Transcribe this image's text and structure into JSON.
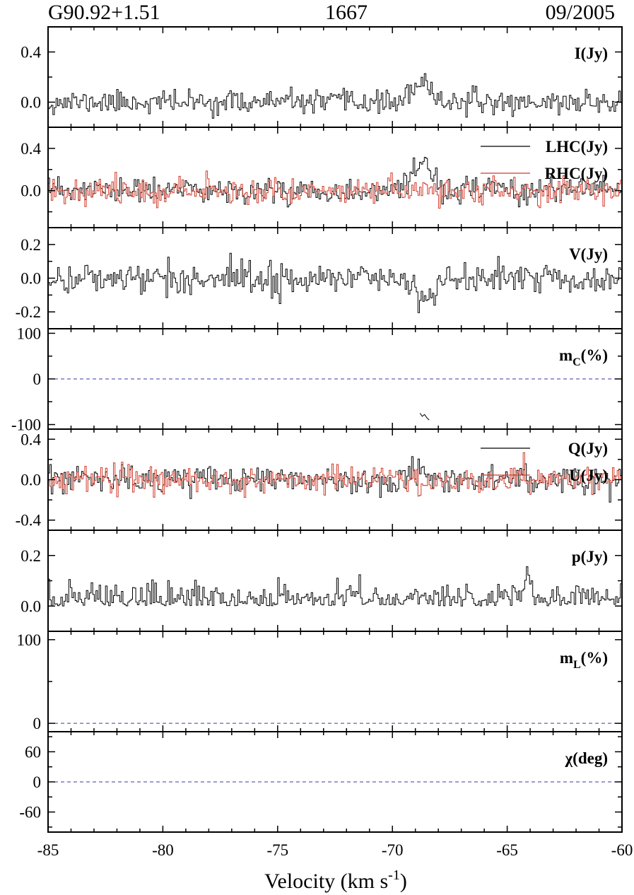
{
  "header": {
    "source": "G90.92+1.51",
    "frequency": "1667",
    "date": "09/2005"
  },
  "colors": {
    "series_black": "#000000",
    "series_red": "#d03a2a",
    "zero_line": "#3a3aa8"
  },
  "chart_data": {
    "type": "line",
    "xlabel": "Velocity (km s",
    "xlabel_sup": "-1",
    "xlabel_close": ")",
    "xlim": [
      -85,
      -60
    ],
    "xticks": [
      -85,
      -80,
      -75,
      -70,
      -65,
      -60
    ],
    "xtick_labels": [
      "-85",
      "-80",
      "-75",
      "-70",
      "-65",
      "-60"
    ],
    "panels": [
      {
        "id": "I",
        "label": "I(Jy)",
        "ylim": [
          -0.2,
          0.6
        ],
        "yticks": [
          0.0,
          0.4
        ],
        "ytick_labels": [
          "0.0",
          "0.4"
        ],
        "zero_dashed": false,
        "series": [
          {
            "key": "I",
            "color": "#000000",
            "noise": 0.045,
            "seed": 11,
            "features": [
              {
                "center": -68.7,
                "width": 0.45,
                "amp": 0.13
              }
            ]
          }
        ]
      },
      {
        "id": "LR",
        "label": "",
        "ylim": [
          -0.35,
          0.6
        ],
        "yticks": [
          0.0,
          0.4
        ],
        "ytick_labels": [
          "0.0",
          "0.4"
        ],
        "zero_dashed": false,
        "legend": [
          {
            "name": "LHC(Jy)",
            "color": "#000000"
          },
          {
            "name": "RHC(Jy)",
            "color": "#d03a2a"
          }
        ],
        "series": [
          {
            "key": "LHC",
            "color": "#000000",
            "noise": 0.06,
            "seed": 23,
            "features": [
              {
                "center": -68.6,
                "width": 0.35,
                "amp": 0.27
              }
            ]
          },
          {
            "key": "RHC",
            "color": "#d03a2a",
            "noise": 0.06,
            "seed": 37,
            "features": []
          }
        ]
      },
      {
        "id": "V",
        "label": "V(Jy)",
        "ylim": [
          -0.3,
          0.3
        ],
        "yticks": [
          -0.2,
          0.0,
          0.2
        ],
        "ytick_labels": [
          "-0.2",
          "0.0",
          "0.2"
        ],
        "zero_dashed": false,
        "series": [
          {
            "key": "V",
            "color": "#000000",
            "noise": 0.045,
            "seed": 41,
            "features": [
              {
                "center": -68.6,
                "width": 0.4,
                "amp": -0.13
              }
            ]
          }
        ]
      },
      {
        "id": "mc",
        "label": "m",
        "label_sub": "C",
        "label_suffix": "(%)",
        "ylim": [
          -110,
          110
        ],
        "yticks": [
          -100,
          0,
          100
        ],
        "ytick_labels": [
          "-100",
          "0",
          "100"
        ],
        "zero_dashed": true,
        "fragment": {
          "x": [
            -68.8,
            -68.7,
            -68.6,
            -68.5,
            -68.4
          ],
          "y": [
            -75,
            -82,
            -78,
            -85,
            -90
          ],
          "color": "#000000"
        }
      },
      {
        "id": "QU",
        "label": "",
        "ylim": [
          -0.5,
          0.5
        ],
        "yticks": [
          -0.4,
          0.0,
          0.4
        ],
        "ytick_labels": [
          "-0.4",
          "0.0",
          "0.4"
        ],
        "zero_dashed": false,
        "legend": [
          {
            "name": "Q(Jy)",
            "color": "#000000"
          },
          {
            "name": "U(Jy)",
            "color": "#d03a2a"
          }
        ],
        "series": [
          {
            "key": "Q",
            "color": "#000000",
            "noise": 0.065,
            "seed": 53,
            "features": [
              {
                "center": -68.7,
                "width": 0.4,
                "amp": 0.1
              }
            ]
          },
          {
            "key": "U",
            "color": "#d03a2a",
            "noise": 0.065,
            "seed": 67,
            "features": []
          }
        ]
      },
      {
        "id": "p",
        "label": "p(Jy)",
        "ylim": [
          -0.1,
          0.3
        ],
        "yticks": [
          0.0,
          0.2
        ],
        "ytick_labels": [
          "0.0",
          "0.2"
        ],
        "zero_dashed": false,
        "series": [
          {
            "key": "p",
            "color": "#000000",
            "noise": 0.045,
            "seed": 79,
            "positive": true,
            "features": [
              {
                "center": -64.1,
                "width": 0.12,
                "amp": 0.12
              }
            ]
          }
        ]
      },
      {
        "id": "mL",
        "label": "m",
        "label_sub": "L",
        "label_suffix": "(%)",
        "ylim": [
          -10,
          110
        ],
        "yticks": [
          0,
          100
        ],
        "ytick_labels": [
          "0",
          "100"
        ],
        "zero_dashed": true
      },
      {
        "id": "chi",
        "label": "χ(deg)",
        "ylim": [
          -100,
          100
        ],
        "yticks": [
          -60,
          0,
          60
        ],
        "ytick_labels": [
          "-60",
          "0",
          "60"
        ],
        "zero_dashed": true
      }
    ]
  }
}
